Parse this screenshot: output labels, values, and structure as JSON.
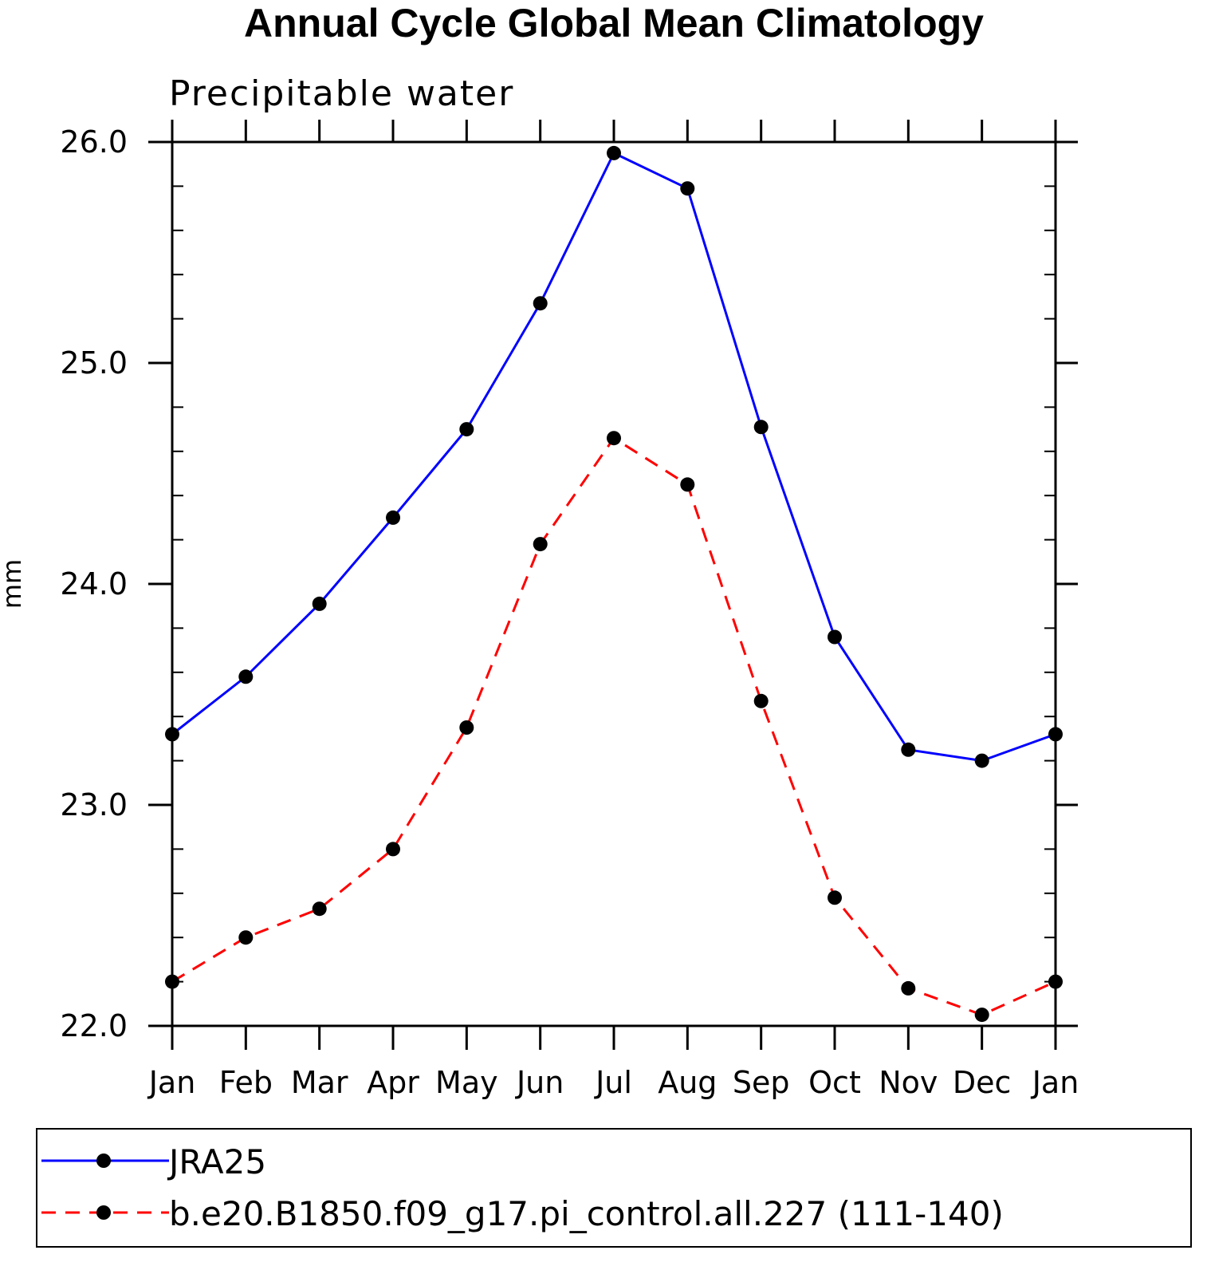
{
  "chart_data": {
    "type": "line",
    "title": "Annual Cycle Global Mean Climatology",
    "subtitle": "Precipitable water",
    "ylabel": "mm",
    "xlabel": "",
    "categories": [
      "Jan",
      "Feb",
      "Mar",
      "Apr",
      "May",
      "Jun",
      "Jul",
      "Aug",
      "Sep",
      "Oct",
      "Nov",
      "Dec",
      "Jan"
    ],
    "ylim": [
      22.0,
      26.0
    ],
    "yticks": [
      "22.0",
      "23.0",
      "24.0",
      "25.0",
      "26.0"
    ],
    "grid": false,
    "legend_position": "bottom",
    "series": [
      {
        "name": "JRA25",
        "color": "#0000ff",
        "line_style": "solid",
        "marker": "filled-circle",
        "values": [
          23.32,
          23.58,
          23.91,
          24.3,
          24.7,
          25.27,
          25.95,
          25.79,
          24.71,
          23.76,
          23.25,
          23.2,
          23.32
        ]
      },
      {
        "name": "b.e20.B1850.f09_g17.pi_control.all.227 (111-140)",
        "color": "#ff0000",
        "line_style": "dashed",
        "marker": "filled-circle",
        "values": [
          22.2,
          22.4,
          22.53,
          22.8,
          23.35,
          24.18,
          24.66,
          24.45,
          23.47,
          22.58,
          22.17,
          22.05,
          22.2
        ]
      }
    ]
  }
}
